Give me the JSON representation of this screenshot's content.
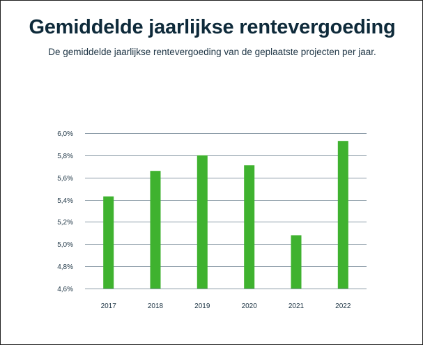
{
  "title": "Gemiddelde jaarlijkse rentevergoeding",
  "subtitle": "De gemiddelde jaarlijkse rentevergoeding van de geplaatste projecten per jaar.",
  "colors": {
    "bar": "#3fb22f",
    "grid": "#8a9aa6",
    "title": "#0e2a3a",
    "text": "#1d3444"
  },
  "chart_data": {
    "type": "bar",
    "title": "Gemiddelde jaarlijkse rentevergoeding",
    "subtitle": "De gemiddelde jaarlijkse rentevergoeding van de geplaatste projecten per jaar.",
    "categories": [
      "2017",
      "2018",
      "2019",
      "2020",
      "2021",
      "2022"
    ],
    "values": [
      5.43,
      5.66,
      5.8,
      5.71,
      5.08,
      5.93
    ],
    "unit": "%",
    "xlabel": "",
    "ylabel": "",
    "ylim": [
      4.6,
      6.0
    ],
    "yticks": [
      4.6,
      4.8,
      5.0,
      5.2,
      5.4,
      5.6,
      5.8,
      6.0
    ],
    "ytick_labels": [
      "4,6%",
      "4,8%",
      "5,0%",
      "5,2%",
      "5,4%",
      "5,6%",
      "5,8%",
      "6,0%"
    ],
    "grid": true,
    "legend": "none"
  }
}
